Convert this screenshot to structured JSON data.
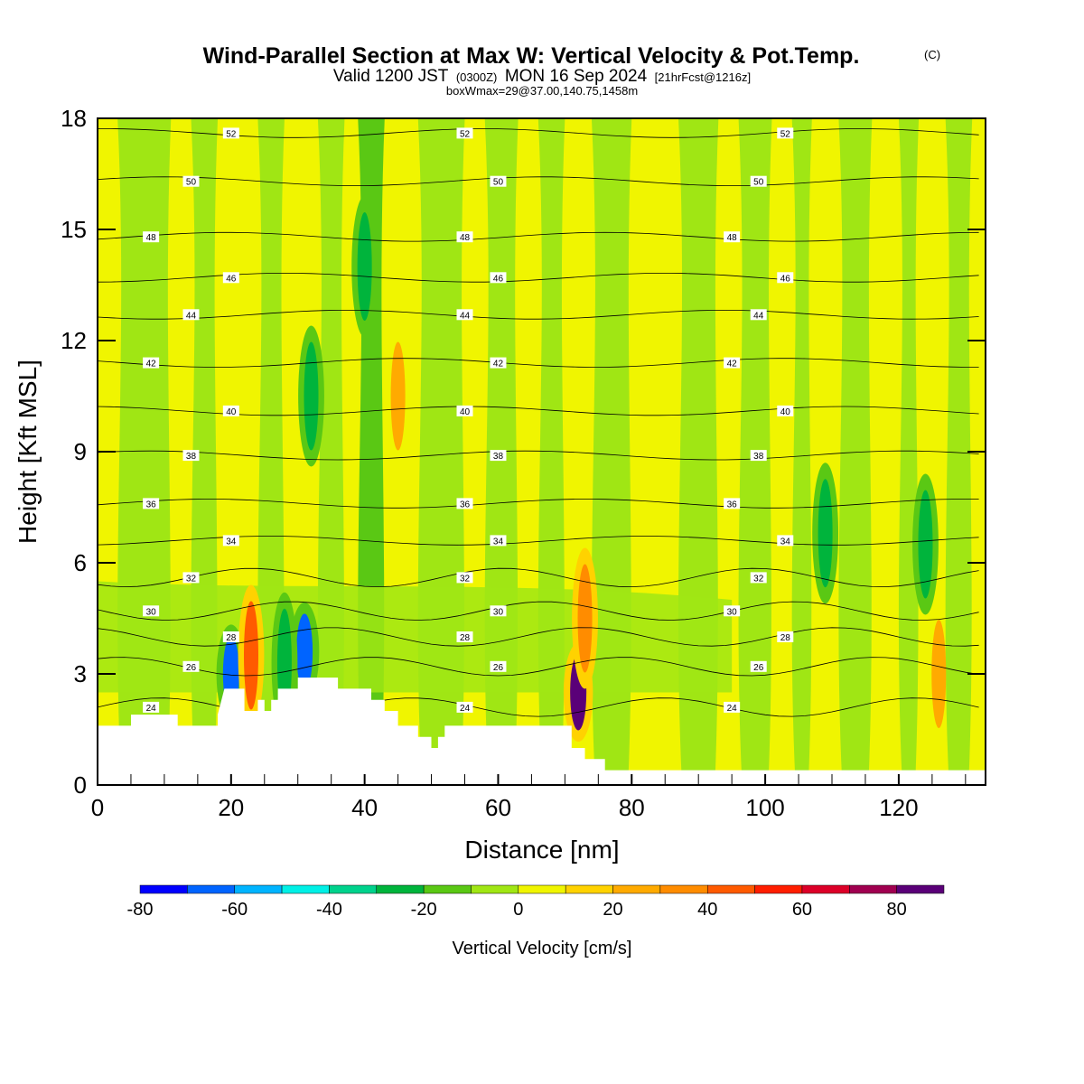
{
  "chart_data": {
    "type": "heatmap",
    "title": "Wind-Parallel Section at Max W: Vertical Velocity & Pot.Temp.",
    "title_mark": "(C)",
    "subtitle_parts": [
      "Valid 1200 JST",
      "(0300Z)",
      "MON 16 Sep 2024",
      "[21hrFcst@1216z]"
    ],
    "subtitle2": "boxWmax=29@37.00,140.75,1458m",
    "xlabel": "Distance [nm]",
    "ylabel": "Height [Kft MSL]",
    "xlim": [
      0,
      133
    ],
    "ylim": [
      0,
      18
    ],
    "x_ticks": [
      "0",
      "20",
      "40",
      "60",
      "80",
      "100",
      "120"
    ],
    "x_tick_values": [
      0,
      20,
      40,
      60,
      80,
      100,
      120
    ],
    "y_ticks": [
      "0",
      "3",
      "6",
      "9",
      "12",
      "15",
      "18"
    ],
    "y_tick_values": [
      0,
      3,
      6,
      9,
      12,
      15,
      18
    ],
    "grid": false,
    "colorbar": {
      "title": "Vertical Velocity [cm/s]",
      "levels": [
        -80,
        -70,
        -60,
        -50,
        -40,
        -30,
        -20,
        -10,
        0,
        10,
        20,
        30,
        40,
        50,
        60,
        70,
        80,
        90
      ],
      "colors": [
        "#0000ff",
        "#0064ff",
        "#00b4ff",
        "#00f0e6",
        "#00d28c",
        "#00b43c",
        "#5ac814",
        "#a0e614",
        "#f0f500",
        "#ffd200",
        "#ffaa00",
        "#ff8c00",
        "#ff5a00",
        "#ff1e00",
        "#dc0028",
        "#a00050",
        "#5a0078"
      ],
      "tick_labels": [
        "-80",
        "-60",
        "-40",
        "-20",
        "0",
        "20",
        "40",
        "60",
        "80"
      ],
      "tick_values": [
        -80,
        -60,
        -40,
        -20,
        0,
        20,
        40,
        60,
        80
      ]
    },
    "terrain_profile": [
      [
        0,
        1.6
      ],
      [
        5,
        1.6
      ],
      [
        5,
        1.9
      ],
      [
        12,
        1.9
      ],
      [
        12,
        1.6
      ],
      [
        18,
        1.6
      ],
      [
        18,
        1.9
      ],
      [
        19,
        2.6
      ],
      [
        22,
        2.6
      ],
      [
        22,
        2.0
      ],
      [
        24,
        2.0
      ],
      [
        24,
        2.3
      ],
      [
        25,
        2.3
      ],
      [
        25,
        2.0
      ],
      [
        26,
        2.0
      ],
      [
        26,
        2.3
      ],
      [
        27,
        2.3
      ],
      [
        27,
        2.6
      ],
      [
        30,
        2.6
      ],
      [
        30,
        2.9
      ],
      [
        36,
        2.9
      ],
      [
        36,
        2.6
      ],
      [
        41,
        2.6
      ],
      [
        41,
        2.3
      ],
      [
        43,
        2.3
      ],
      [
        43,
        2.0
      ],
      [
        45,
        2.0
      ],
      [
        45,
        1.6
      ],
      [
        48,
        1.6
      ],
      [
        48,
        1.3
      ],
      [
        50,
        1.3
      ],
      [
        50,
        1.0
      ],
      [
        51,
        1.0
      ],
      [
        51,
        1.3
      ],
      [
        52,
        1.3
      ],
      [
        52,
        1.6
      ],
      [
        71,
        1.6
      ],
      [
        71,
        1.0
      ],
      [
        73,
        1.0
      ],
      [
        73,
        0.7
      ],
      [
        76,
        0.7
      ],
      [
        76,
        0.4
      ],
      [
        133,
        0.4
      ]
    ],
    "theta_contours": [
      {
        "label": "24",
        "h": 2.1
      },
      {
        "label": "26",
        "h": 3.2
      },
      {
        "label": "28",
        "h": 4.0
      },
      {
        "label": "30",
        "h": 4.7
      },
      {
        "label": "32",
        "h": 5.6
      },
      {
        "label": "34",
        "h": 6.6
      },
      {
        "label": "36",
        "h": 7.6
      },
      {
        "label": "38",
        "h": 8.9
      },
      {
        "label": "40",
        "h": 10.1
      },
      {
        "label": "42",
        "h": 11.4
      },
      {
        "label": "44",
        "h": 12.7
      },
      {
        "label": "46",
        "h": 13.7
      },
      {
        "label": "48",
        "h": 14.8
      },
      {
        "label": "50",
        "h": 16.3
      },
      {
        "label": "52",
        "h": 17.6
      }
    ],
    "w_features": [
      {
        "x": 20,
        "h": 3.0,
        "w": -70
      },
      {
        "x": 23,
        "h": 3.5,
        "w": 40
      },
      {
        "x": 31,
        "h": 3.6,
        "w": -70
      },
      {
        "x": 28,
        "h": 3.3,
        "w": -30
      },
      {
        "x": 72,
        "h": 2.5,
        "w": 85
      },
      {
        "x": 73,
        "h": 4.5,
        "w": 30
      },
      {
        "x": 45,
        "h": 10.5,
        "w": 20
      },
      {
        "x": 40,
        "h": 14.0,
        "w": -30
      },
      {
        "x": 32,
        "h": 10.5,
        "w": -30
      },
      {
        "x": 109,
        "h": 6.8,
        "w": -30
      },
      {
        "x": 124,
        "h": 6.5,
        "w": -30
      },
      {
        "x": 126,
        "h": 3.0,
        "w": 20
      }
    ]
  }
}
